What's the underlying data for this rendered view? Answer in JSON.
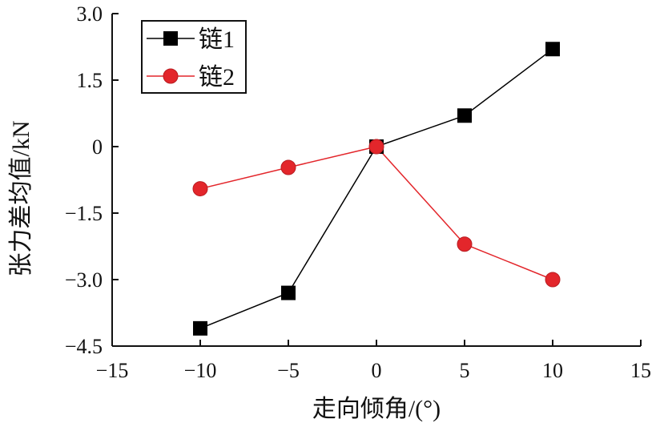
{
  "chart_data": {
    "type": "line",
    "title": "",
    "xlabel": "走向倾角/(°)",
    "ylabel": "张力差均值/kN",
    "xlim": [
      -15,
      15
    ],
    "ylim": [
      -4.5,
      3.0
    ],
    "xticks": [
      -15,
      -10,
      -5,
      0,
      5,
      10,
      15
    ],
    "xtick_labels": [
      "−15",
      "−10",
      "−5",
      "0",
      "5",
      "10",
      "15"
    ],
    "yticks": [
      3.0,
      1.5,
      0,
      -1.5,
      -3.0,
      -4.5
    ],
    "ytick_labels": [
      "3.0",
      "1.5",
      "0",
      "−1.5",
      "−3.0",
      "−4.5"
    ],
    "grid": false,
    "legend_position": "top-left",
    "x": [
      -10,
      -5,
      0,
      5,
      10
    ],
    "series": [
      {
        "name": "链1",
        "values": [
          -4.1,
          -3.3,
          0.0,
          0.7,
          2.2
        ],
        "color": "#000000",
        "marker": "square"
      },
      {
        "name": "链2",
        "values": [
          -0.95,
          -0.47,
          0.0,
          -2.2,
          -3.0
        ],
        "color": "#e3262b",
        "marker": "circle"
      }
    ]
  }
}
